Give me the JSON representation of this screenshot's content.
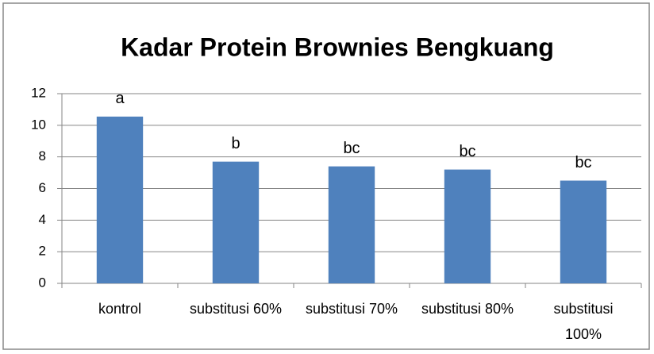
{
  "chart_data": {
    "type": "bar",
    "title": "Kadar Protein Brownies Bengkuang",
    "categories": [
      "kontrol",
      "substitusi 60%",
      "substitusi 70%",
      "substitusi 80%",
      "substitusi 100%"
    ],
    "values": [
      10.55,
      7.7,
      7.4,
      7.2,
      6.5
    ],
    "annotations": [
      "a",
      "b",
      "bc",
      "bc",
      "bc"
    ],
    "color": "#4f81bd",
    "ylim": [
      0,
      12
    ],
    "yticks": [
      0,
      2,
      4,
      6,
      8,
      10,
      12
    ],
    "grid": true
  }
}
